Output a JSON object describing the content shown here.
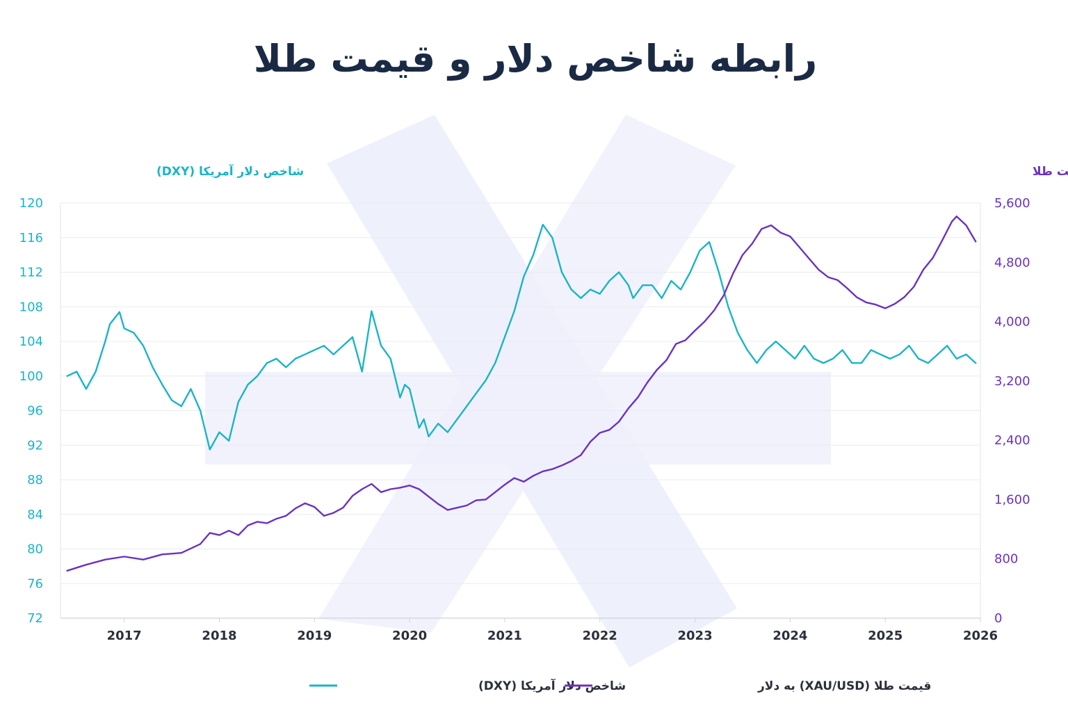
{
  "colors": {
    "dxy": "#1ab4c6",
    "gold": "#6a32c0",
    "title": "#1a2a44",
    "grid": "#e8ebf0",
    "watermark": "#eef0fc"
  },
  "chart_data": {
    "type": "line",
    "title": "رابطه شاخص دلار و قیمت طلا",
    "ylabel_left": "شاخص دلار آمریکا (DXY)",
    "ylabel_right": "قیمت طلا",
    "x_ticks": [
      "2017",
      "2018",
      "2019",
      "2020",
      "2021",
      "2022",
      "2023",
      "2024",
      "2025",
      "2026"
    ],
    "xlim": [
      2016.33,
      2026.0
    ],
    "ylim_left": [
      72,
      120
    ],
    "yticks_left": [
      "120",
      "116",
      "112",
      "108",
      "104",
      "100",
      "96",
      "92",
      "88",
      "84",
      "80",
      "76",
      "72"
    ],
    "ylim_right": [
      0,
      5600
    ],
    "yticks_right": [
      "5,600",
      "4,800",
      "4,000",
      "3,200",
      "2,400",
      "1,600",
      "800",
      "0"
    ],
    "grid": true,
    "legend_position": "bottom",
    "series": [
      {
        "name": "شاخص دلار آمریکا (DXY)",
        "axis": "left",
        "x": [
          2016.4,
          2016.5,
          2016.6,
          2016.7,
          2016.8,
          2016.85,
          2016.95,
          2017.0,
          2017.1,
          2017.2,
          2017.3,
          2017.4,
          2017.5,
          2017.6,
          2017.7,
          2017.8,
          2017.9,
          2018.0,
          2018.1,
          2018.2,
          2018.3,
          2018.4,
          2018.5,
          2018.6,
          2018.7,
          2018.8,
          2018.9,
          2019.0,
          2019.1,
          2019.2,
          2019.3,
          2019.4,
          2019.5,
          2019.6,
          2019.7,
          2019.8,
          2019.9,
          2019.95,
          2020.0,
          2020.1,
          2020.15,
          2020.2,
          2020.3,
          2020.4,
          2020.5,
          2020.6,
          2020.7,
          2020.8,
          2020.9,
          2021.0,
          2021.1,
          2021.2,
          2021.3,
          2021.4,
          2021.5,
          2021.6,
          2021.7,
          2021.8,
          2021.9,
          2022.0,
          2022.1,
          2022.2,
          2022.3,
          2022.35,
          2022.45,
          2022.55,
          2022.65,
          2022.75,
          2022.85,
          2022.95,
          2023.05,
          2023.15,
          2023.25,
          2023.35,
          2023.45,
          2023.55,
          2023.65,
          2023.75,
          2023.85,
          2023.95,
          2024.05,
          2024.15,
          2024.25,
          2024.35,
          2024.45,
          2024.55,
          2024.65,
          2024.75,
          2024.85,
          2024.95,
          2025.05,
          2025.15,
          2025.25,
          2025.35,
          2025.45,
          2025.55,
          2025.65,
          2025.75,
          2025.85,
          2025.95
        ],
        "values": [
          100,
          100.5,
          98.5,
          100.5,
          104,
          106,
          107.4,
          105.5,
          105,
          103.5,
          101,
          99,
          97.2,
          96.5,
          98.5,
          96,
          91.5,
          93.5,
          92.5,
          97,
          99,
          100,
          101.5,
          102,
          101,
          102,
          102.5,
          103,
          103.5,
          102.5,
          103.5,
          104.5,
          100.5,
          107.5,
          103.5,
          102,
          97.5,
          99,
          98.5,
          94,
          95,
          93,
          94.5,
          93.5,
          95,
          96.5,
          98,
          99.5,
          101.5,
          104.5,
          107.5,
          111.5,
          114,
          117.5,
          116,
          112,
          110,
          109,
          110,
          109.5,
          111,
          112,
          110.5,
          109,
          110.5,
          110.5,
          109,
          111,
          110,
          112,
          114.5,
          115.5,
          112,
          108,
          105,
          103,
          101.5,
          103,
          104,
          103,
          102,
          103.5,
          102,
          101.5,
          102,
          103,
          101.5,
          101.5,
          103,
          102.5,
          102,
          102.5,
          103.5,
          102,
          101.5,
          102.5,
          103.5,
          102,
          102.5,
          101.5
        ]
      },
      {
        "name": "قیمت طلا (XAU/USD) به دلار",
        "axis": "right",
        "x": [
          2016.4,
          2016.6,
          2016.8,
          2017.0,
          2017.2,
          2017.4,
          2017.6,
          2017.8,
          2017.9,
          2018.0,
          2018.1,
          2018.2,
          2018.3,
          2018.4,
          2018.5,
          2018.6,
          2018.7,
          2018.8,
          2018.9,
          2019.0,
          2019.1,
          2019.2,
          2019.3,
          2019.4,
          2019.5,
          2019.6,
          2019.7,
          2019.8,
          2019.9,
          2020.0,
          2020.1,
          2020.2,
          2020.3,
          2020.4,
          2020.5,
          2020.6,
          2020.7,
          2020.8,
          2020.9,
          2021.0,
          2021.1,
          2021.2,
          2021.3,
          2021.4,
          2021.5,
          2021.6,
          2021.7,
          2021.8,
          2021.9,
          2022.0,
          2022.1,
          2022.2,
          2022.3,
          2022.4,
          2022.5,
          2022.6,
          2022.7,
          2022.8,
          2022.9,
          2023.0,
          2023.1,
          2023.2,
          2023.3,
          2023.4,
          2023.5,
          2023.6,
          2023.7,
          2023.8,
          2023.9,
          2024.0,
          2024.1,
          2024.2,
          2024.3,
          2024.4,
          2024.5,
          2024.6,
          2024.7,
          2024.8,
          2024.9,
          2025.0,
          2025.1,
          2025.2,
          2025.3,
          2025.4,
          2025.5,
          2025.6,
          2025.7,
          2025.75,
          2025.85,
          2025.95
        ],
        "values": [
          640,
          720,
          790,
          830,
          790,
          860,
          880,
          1000,
          1150,
          1120,
          1180,
          1120,
          1250,
          1300,
          1280,
          1340,
          1380,
          1480,
          1550,
          1500,
          1380,
          1420,
          1490,
          1650,
          1740,
          1810,
          1700,
          1740,
          1760,
          1790,
          1740,
          1640,
          1540,
          1460,
          1490,
          1520,
          1590,
          1600,
          1700,
          1800,
          1890,
          1840,
          1920,
          1980,
          2010,
          2060,
          2120,
          2200,
          2380,
          2500,
          2540,
          2650,
          2830,
          2980,
          3180,
          3350,
          3480,
          3700,
          3750,
          3880,
          4000,
          4150,
          4350,
          4650,
          4900,
          5050,
          5250,
          5300,
          5200,
          5150,
          5000,
          4850,
          4700,
          4600,
          4560,
          4450,
          4330,
          4260,
          4230,
          4180,
          4240,
          4330,
          4470,
          4700,
          4860,
          5100,
          5350,
          5420,
          5300,
          5080
        ]
      }
    ]
  }
}
